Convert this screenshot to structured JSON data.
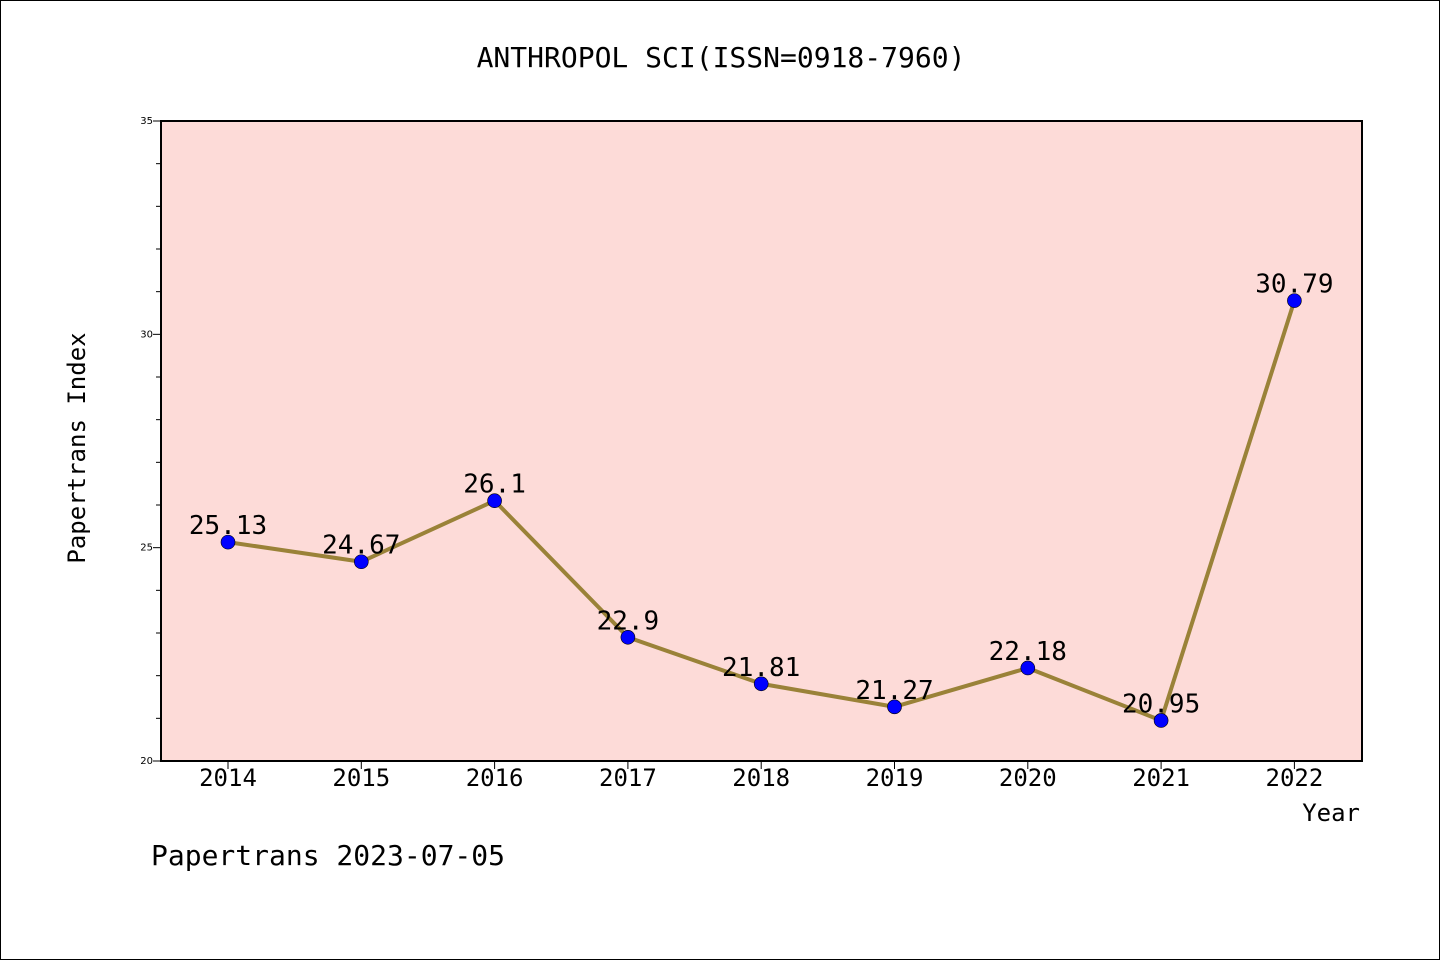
{
  "chart_data": {
    "type": "line",
    "title": "ANTHROPOL SCI(ISSN=0918-7960)",
    "xlabel": "Year",
    "ylabel": "Papertrans Index",
    "categories": [
      "2014",
      "2015",
      "2016",
      "2017",
      "2018",
      "2019",
      "2020",
      "2021",
      "2022"
    ],
    "series": [
      {
        "values": [
          25.13,
          24.67,
          26.1,
          22.9,
          21.81,
          21.27,
          22.18,
          20.95,
          30.79
        ],
        "labels": [
          "25.13",
          "24.67",
          "26.1",
          "22.9",
          "21.81",
          "21.27",
          "22.18",
          "20.95",
          "30.79"
        ]
      }
    ],
    "ylim": [
      20,
      35
    ],
    "yticks": [
      "20",
      "25",
      "30",
      "35"
    ],
    "grid": false,
    "colors": {
      "plot_background": "#fddbd8",
      "line": "#9a8238",
      "marker": "#0000ff"
    }
  },
  "footer": "Papertrans 2023-07-05"
}
